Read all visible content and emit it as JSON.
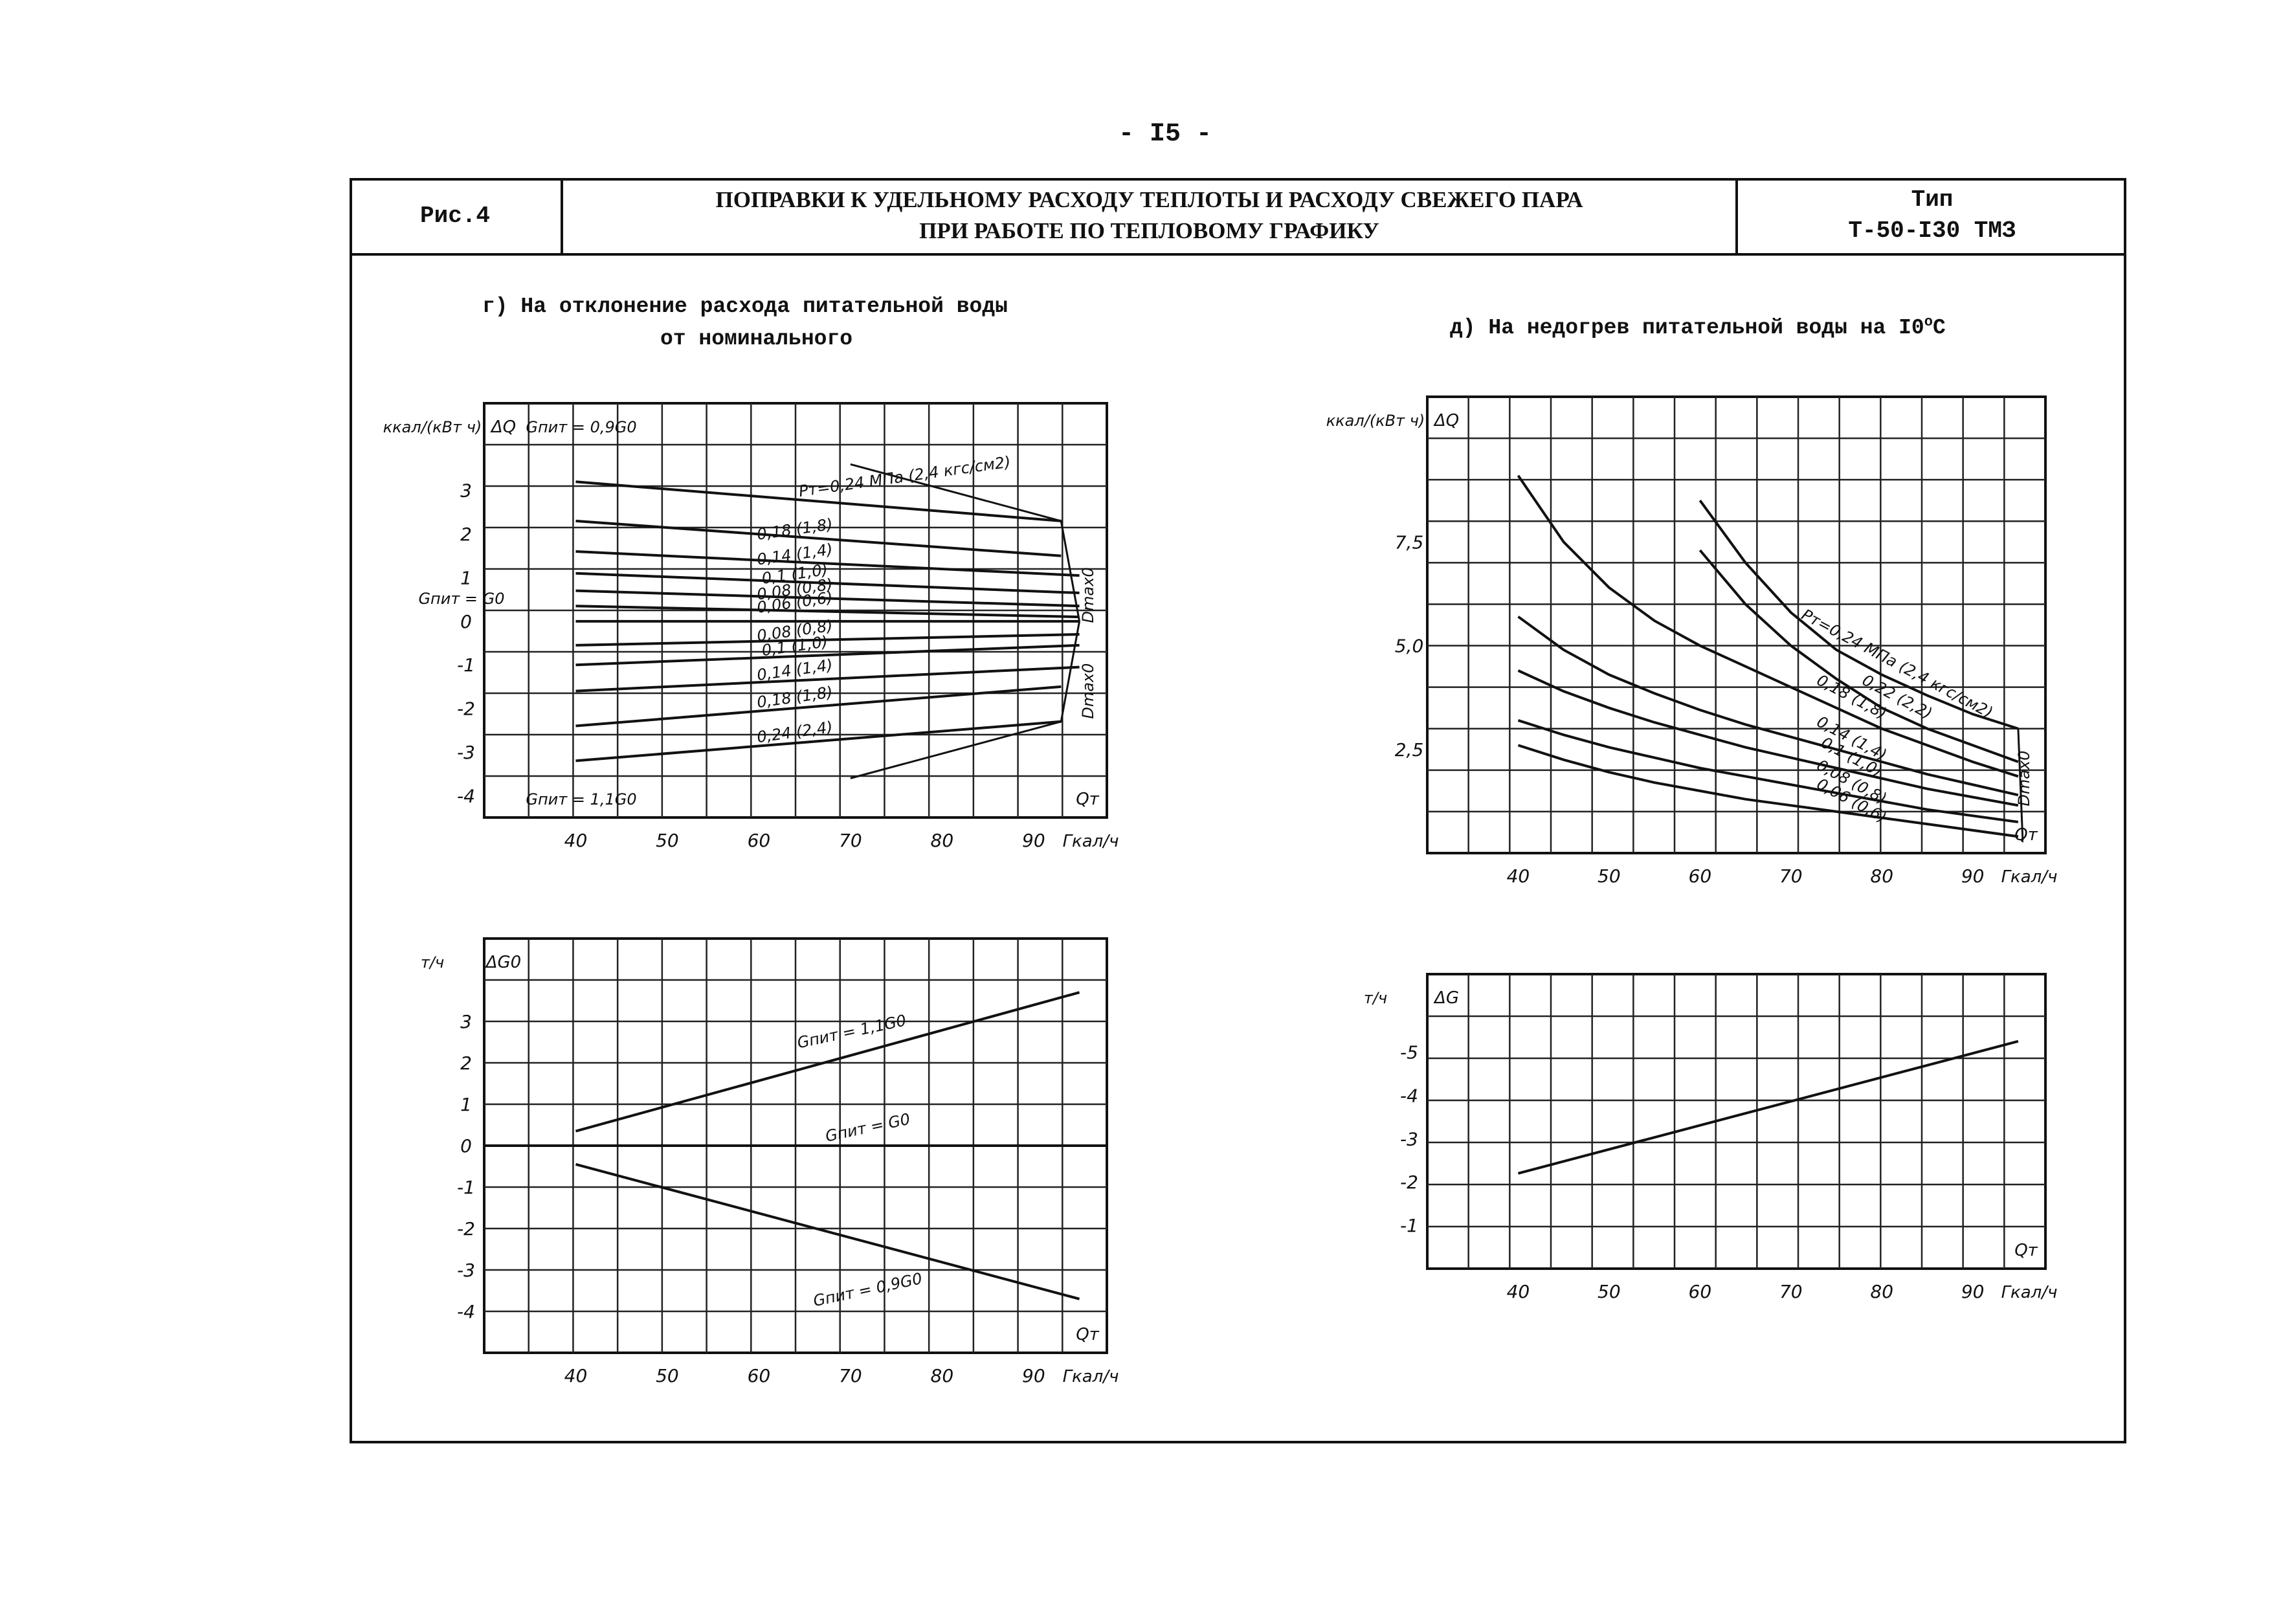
{
  "page_number": "- I5 -",
  "header": {
    "fig_label": "Рис.4",
    "title_line1": "ПОПРАВКИ К УДЕЛЬНОМУ РАСХОДУ ТЕПЛОТЫ И РАСХОДУ СВЕЖЕГО ПАРА",
    "title_line2": "ПРИ РАБОТЕ ПО ТЕПЛОВОМУ ГРАФИКУ",
    "type_label": "Тип",
    "type_value": "Т-50-I30 ТМЗ"
  },
  "section_g": {
    "line1": "г) На отклонение расхода питательной воды",
    "line2": "от номинального"
  },
  "section_d": {
    "line1": "д) На недогрев питательной воды на I0",
    "sup": "о",
    "line2": "С"
  },
  "chart_data": [
    {
      "id": "g_top",
      "type": "line",
      "ylabel_unit": "ккал/(кВт ч)",
      "ylabel_sym": "ΔQ",
      "xlabel_sym": "Qт",
      "x_unit": "Гкал/ч",
      "x_ticks": [
        "40",
        "50",
        "60",
        "70",
        "80",
        "90"
      ],
      "y_ticks": [
        "3",
        "2",
        "1",
        "0",
        "-1",
        "-2",
        "-3",
        "-4"
      ],
      "xlim": [
        30,
        98
      ],
      "ylim": [
        -4.5,
        5
      ],
      "annotations": [
        "Gпит = 0,9G0",
        "Gпит = G0",
        "Gпит = 1,1G0",
        "Dmax0",
        "Dmax0"
      ],
      "series": [
        {
          "name": "Pт=0,24 МПа (2,4 кгс/см2)",
          "x": [
            40,
            93
          ],
          "y": [
            3.2,
            2.3
          ]
        },
        {
          "name": "0,18 (1,8)",
          "x": [
            40,
            93
          ],
          "y": [
            2.3,
            1.5
          ]
        },
        {
          "name": "0,14 (1,4)",
          "x": [
            40,
            95
          ],
          "y": [
            1.6,
            1.05
          ]
        },
        {
          "name": "0,1 (1,0)",
          "x": [
            40,
            95
          ],
          "y": [
            1.1,
            0.65
          ]
        },
        {
          "name": "0,08 (0,8)",
          "x": [
            40,
            95
          ],
          "y": [
            0.7,
            0.35
          ]
        },
        {
          "name": "0,06 (0,6)",
          "x": [
            40,
            95
          ],
          "y": [
            0.35,
            0.1
          ]
        },
        {
          "name": "",
          "x": [
            40,
            95
          ],
          "y": [
            0.0,
            0.0
          ]
        },
        {
          "name": "0,08 (0,8)",
          "x": [
            40,
            95
          ],
          "y": [
            -0.55,
            -0.3
          ]
        },
        {
          "name": "0,1 (1,0)",
          "x": [
            40,
            95
          ],
          "y": [
            -1.0,
            -0.55
          ]
        },
        {
          "name": "0,14 (1,4)",
          "x": [
            40,
            95
          ],
          "y": [
            -1.6,
            -1.05
          ]
        },
        {
          "name": "0,18 (1,8)",
          "x": [
            40,
            93
          ],
          "y": [
            -2.4,
            -1.5
          ]
        },
        {
          "name": "0,24 (2,4)",
          "x": [
            40,
            93
          ],
          "y": [
            -3.2,
            -2.3
          ]
        }
      ]
    },
    {
      "id": "g_bottom",
      "type": "line",
      "ylabel_unit": "т/ч",
      "ylabel_sym": "ΔG0",
      "xlabel_sym": "Qт",
      "x_unit": "Гкал/ч",
      "x_ticks": [
        "40",
        "50",
        "60",
        "70",
        "80",
        "90"
      ],
      "y_ticks": [
        "3",
        "2",
        "1",
        "0",
        "-1",
        "-2",
        "-3",
        "-4"
      ],
      "xlim": [
        30,
        98
      ],
      "ylim": [
        -5,
        5
      ],
      "series": [
        {
          "name": "Gпит = 1,1G0",
          "x": [
            40,
            95
          ],
          "y": [
            0.35,
            3.7
          ]
        },
        {
          "name": "Gпит = G0",
          "x": [
            30,
            98
          ],
          "y": [
            0,
            0
          ]
        },
        {
          "name": "Gпит = 0,9G0",
          "x": [
            40,
            95
          ],
          "y": [
            -0.45,
            -3.7
          ]
        }
      ]
    },
    {
      "id": "d_top",
      "type": "line",
      "ylabel_unit": "ккал/(кВт ч)",
      "ylabel_sym": "ΔQ",
      "xlabel_sym": "Qт",
      "x_unit": "Гкал/ч",
      "x_ticks": [
        "40",
        "50",
        "60",
        "70",
        "80",
        "90"
      ],
      "y_ticks": [
        "7,5",
        "5,0",
        "2,5"
      ],
      "xlim": [
        30,
        98
      ],
      "ylim": [
        0,
        11
      ],
      "annotations": [
        "Dmax0"
      ],
      "series": [
        {
          "name": "Pт=0,24 МПа (2,4 кгс/см2)",
          "x": [
            60,
            65,
            70,
            75,
            80,
            85,
            90,
            95
          ],
          "y": [
            8.5,
            7.0,
            5.8,
            4.9,
            4.3,
            3.8,
            3.35,
            3.0
          ]
        },
        {
          "name": "0,22 (2,2)",
          "x": [
            60,
            65,
            70,
            75,
            80,
            85,
            90,
            95
          ],
          "y": [
            7.3,
            6.0,
            5.0,
            4.2,
            3.5,
            3.0,
            2.6,
            2.2
          ]
        },
        {
          "name": "0,18 (1,8)",
          "x": [
            40,
            45,
            50,
            55,
            60,
            65,
            70,
            75,
            80,
            85,
            90,
            95
          ],
          "y": [
            9.1,
            7.5,
            6.4,
            5.6,
            5.0,
            4.5,
            4.0,
            3.5,
            3.0,
            2.6,
            2.2,
            1.85
          ]
        },
        {
          "name": "0,14 (1,4)",
          "x": [
            40,
            45,
            50,
            55,
            60,
            65,
            70,
            75,
            80,
            85,
            90,
            95
          ],
          "y": [
            5.7,
            4.9,
            4.3,
            3.85,
            3.45,
            3.1,
            2.8,
            2.5,
            2.2,
            1.9,
            1.65,
            1.4
          ]
        },
        {
          "name": "0,1 (1,0)",
          "x": [
            40,
            45,
            50,
            55,
            60,
            65,
            70,
            75,
            80,
            85,
            90,
            95
          ],
          "y": [
            4.4,
            3.9,
            3.5,
            3.15,
            2.85,
            2.55,
            2.3,
            2.05,
            1.8,
            1.55,
            1.35,
            1.15
          ]
        },
        {
          "name": "0,08 (0,8)",
          "x": [
            40,
            45,
            50,
            55,
            60,
            65,
            70,
            75,
            80,
            85,
            90,
            95
          ],
          "y": [
            3.2,
            2.85,
            2.55,
            2.3,
            2.05,
            1.85,
            1.65,
            1.45,
            1.25,
            1.05,
            0.9,
            0.75
          ]
        },
        {
          "name": "0,06 (0,6)",
          "x": [
            40,
            45,
            50,
            55,
            60,
            65,
            70,
            75,
            80,
            85,
            90,
            95
          ],
          "y": [
            2.6,
            2.25,
            1.95,
            1.7,
            1.5,
            1.3,
            1.15,
            1.0,
            0.85,
            0.7,
            0.55,
            0.4
          ]
        }
      ]
    },
    {
      "id": "d_bottom",
      "type": "line",
      "ylabel_unit": "т/ч",
      "ylabel_sym": "ΔG",
      "xlabel_sym": "Qт",
      "x_unit": "Гкал/ч",
      "x_ticks": [
        "40",
        "50",
        "60",
        "70",
        "80",
        "90"
      ],
      "y_ticks": [
        "-5",
        "-4",
        "-3",
        "-2",
        "-1"
      ],
      "xlim": [
        30,
        98
      ],
      "ylim": [
        0,
        -6.8
      ],
      "series": [
        {
          "name": "",
          "x": [
            40,
            95
          ],
          "y": [
            -2.2,
            -5.25
          ]
        }
      ]
    }
  ]
}
